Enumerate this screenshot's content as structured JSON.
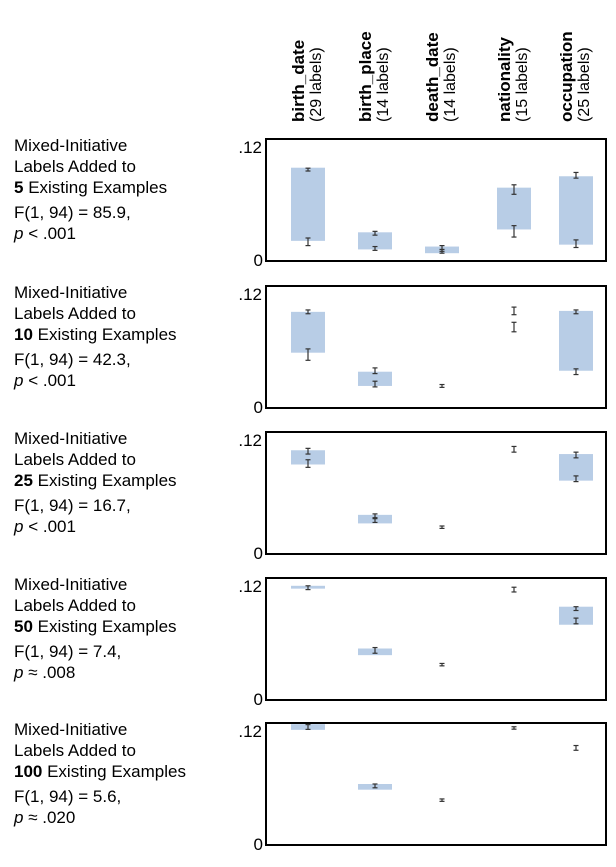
{
  "chart_data": {
    "type": "box-plot-panels",
    "columns": [
      {
        "key": "birth_date",
        "title": "birth_date",
        "sub": "(29 labels)"
      },
      {
        "key": "birth_place",
        "title": "birth_place",
        "sub": "(14 labels)"
      },
      {
        "key": "death_date",
        "title": "death_date",
        "sub": "(14 labels)"
      },
      {
        "key": "nationality",
        "title": "nationality",
        "sub": "(15 labels)"
      },
      {
        "key": "occupation",
        "title": "occupation",
        "sub": "(25 labels)"
      }
    ],
    "y_ticks": {
      "top": ".12",
      "bottom": "0"
    },
    "ylim": [
      0,
      0.12
    ],
    "panels": [
      {
        "label": {
          "l1": "Mixed-Initiative",
          "l2": "Labels Added to",
          "n": "5",
          "tail": " Existing Examples",
          "stat": "F(1, 94) = 85.9,",
          "p_sym": "p",
          "p_rest": " < .001"
        },
        "bars": [
          {
            "col": 0,
            "top": 0.094,
            "bottom": 0.017,
            "marks": [
              {
                "y": 0.092,
                "e": 0.0015
              },
              {
                "y": 0.016,
                "e": 0.004
              }
            ]
          },
          {
            "col": 1,
            "top": 0.026,
            "bottom": 0.008,
            "marks": [
              {
                "y": 0.025,
                "e": 0.002
              },
              {
                "y": 0.009,
                "e": 0.002
              }
            ]
          },
          {
            "col": 2,
            "top": 0.011,
            "bottom": 0.004,
            "marks": [
              {
                "y": 0.009,
                "e": 0.003
              },
              {
                "y": 0.006,
                "e": 0.002
              }
            ]
          },
          {
            "col": 3,
            "top": 0.073,
            "bottom": 0.029,
            "marks": [
              {
                "y": 0.071,
                "e": 0.005
              },
              {
                "y": 0.027,
                "e": 0.006
              }
            ]
          },
          {
            "col": 4,
            "top": 0.085,
            "bottom": 0.013,
            "marks": [
              {
                "y": 0.086,
                "e": 0.003
              },
              {
                "y": 0.014,
                "e": 0.004
              }
            ]
          }
        ]
      },
      {
        "label": {
          "l1": "Mixed-Initiative",
          "l2": "Labels Added to",
          "n": "10",
          "tail": " Existing Examples",
          "stat": "F(1, 94) = 42.3,",
          "p_sym": "p",
          "p_rest": " < .001"
        },
        "bars": [
          {
            "col": 0,
            "top": 0.097,
            "bottom": 0.054,
            "marks": [
              {
                "y": 0.097,
                "e": 0.002
              },
              {
                "y": 0.052,
                "e": 0.006
              }
            ]
          },
          {
            "col": 1,
            "top": 0.034,
            "bottom": 0.019,
            "marks": [
              {
                "y": 0.035,
                "e": 0.003
              },
              {
                "y": 0.021,
                "e": 0.003
              }
            ]
          },
          {
            "col": 3,
            "top": null,
            "bottom": null,
            "marks": [
              {
                "y": 0.098,
                "e": 0.004
              },
              {
                "y": 0.081,
                "e": 0.005
              }
            ]
          },
          {
            "col": 4,
            "top": 0.098,
            "bottom": 0.035,
            "marks": [
              {
                "y": 0.097,
                "e": 0.002
              },
              {
                "y": 0.034,
                "e": 0.003
              }
            ]
          },
          {
            "col": 2,
            "top": null,
            "bottom": null,
            "marks": [
              {
                "y": 0.019,
                "e": 0.0015
              }
            ]
          }
        ]
      },
      {
        "label": {
          "l1": "Mixed-Initiative",
          "l2": "Labels Added to",
          "n": "25",
          "tail": " Existing Examples",
          "stat": "F(1, 94) = 16.7,",
          "p_sym": "p",
          "p_rest": " < .001"
        },
        "bars": [
          {
            "col": 0,
            "top": 0.105,
            "bottom": 0.09,
            "marks": [
              {
                "y": 0.104,
                "e": 0.003
              },
              {
                "y": 0.091,
                "e": 0.004
              }
            ]
          },
          {
            "col": 1,
            "top": 0.037,
            "bottom": 0.028,
            "marks": [
              {
                "y": 0.036,
                "e": 0.002
              },
              {
                "y": 0.031,
                "e": 0.002
              }
            ]
          },
          {
            "col": 2,
            "top": null,
            "bottom": null,
            "marks": [
              {
                "y": 0.024,
                "e": 0.0008
              }
            ]
          },
          {
            "col": 3,
            "top": null,
            "bottom": null,
            "marks": [
              {
                "y": 0.106,
                "e": 0.003
              }
            ]
          },
          {
            "col": 4,
            "top": 0.101,
            "bottom": 0.073,
            "marks": [
              {
                "y": 0.1,
                "e": 0.003
              },
              {
                "y": 0.075,
                "e": 0.003
              }
            ]
          }
        ]
      },
      {
        "label": {
          "l1": "Mixed-Initiative",
          "l2": "Labels Added to",
          "n": "50",
          "tail": " Existing Examples",
          "stat": "F(1, 94) = 7.4,",
          "p_sym": "p",
          "p_rest": " ≈ .008"
        },
        "bars": [
          {
            "col": 0,
            "top": 0.116,
            "bottom": 0.113,
            "marks": [
              {
                "y": 0.114,
                "e": 0.002
              }
            ]
          },
          {
            "col": 1,
            "top": 0.05,
            "bottom": 0.043,
            "marks": [
              {
                "y": 0.048,
                "e": 0.003
              }
            ]
          },
          {
            "col": 2,
            "top": null,
            "bottom": null,
            "marks": [
              {
                "y": 0.033,
                "e": 0.0008
              }
            ]
          },
          {
            "col": 3,
            "top": null,
            "bottom": null,
            "marks": [
              {
                "y": 0.112,
                "e": 0.0025
              }
            ]
          },
          {
            "col": 4,
            "top": 0.094,
            "bottom": 0.075,
            "marks": [
              {
                "y": 0.092,
                "e": 0.002
              },
              {
                "y": 0.079,
                "e": 0.003
              }
            ]
          }
        ]
      },
      {
        "label": {
          "l1": "Mixed-Initiative",
          "l2": "Labels Added to",
          "n": "100",
          "tail": " Existing Examples",
          "stat": "F(1, 94) = 5.6,",
          "p_sym": "p",
          "p_rest": " ≈ .020"
        },
        "bars": [
          {
            "col": 0,
            "top": 0.123,
            "bottom": 0.117,
            "marks": [
              {
                "y": 0.12,
                "e": 0.0025
              }
            ]
          },
          {
            "col": 1,
            "top": 0.06,
            "bottom": 0.054,
            "marks": [
              {
                "y": 0.058,
                "e": 0.002
              }
            ]
          },
          {
            "col": 2,
            "top": null,
            "bottom": null,
            "marks": [
              {
                "y": 0.043,
                "e": 0.0008
              }
            ]
          },
          {
            "col": 3,
            "top": null,
            "bottom": null,
            "marks": [
              {
                "y": 0.119,
                "e": 0.001
              }
            ]
          },
          {
            "col": 4,
            "top": null,
            "bottom": null,
            "marks": [
              {
                "y": 0.098,
                "e": 0.0025
              }
            ]
          }
        ]
      }
    ],
    "box_color": "#b8cde6",
    "mark_color": "#333333"
  }
}
